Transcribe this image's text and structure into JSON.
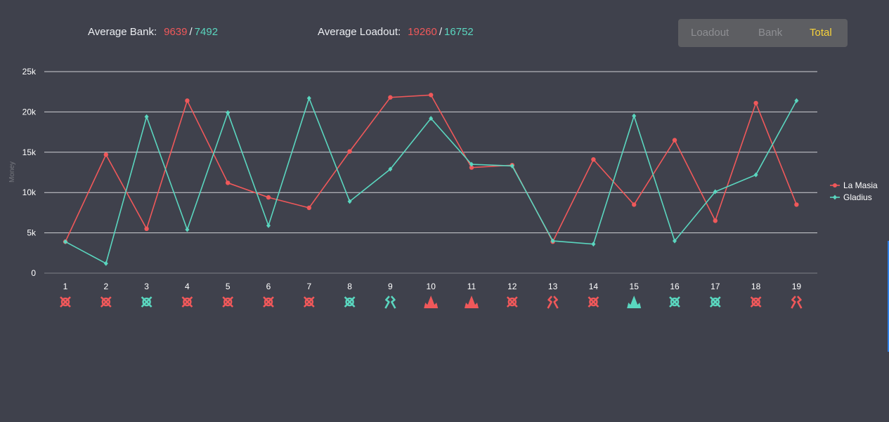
{
  "stats": {
    "bank": {
      "label": "Average Bank:",
      "red": "9639",
      "teal": "7492"
    },
    "loadout": {
      "label": "Average Loadout:",
      "red": "19260",
      "teal": "16752"
    }
  },
  "tabs": [
    {
      "label": "Loadout",
      "active": false
    },
    {
      "label": "Bank",
      "active": false
    },
    {
      "label": "Total",
      "active": true
    }
  ],
  "colors": {
    "team_red": "#f0585a",
    "team_teal": "#5ad6bf"
  },
  "chart_data": {
    "type": "line",
    "ylabel": "Money",
    "ylim": [
      0,
      25000
    ],
    "yticks": [
      {
        "value": 0,
        "label": "0"
      },
      {
        "value": 5000,
        "label": "5k"
      },
      {
        "value": 10000,
        "label": "10k"
      },
      {
        "value": 15000,
        "label": "15k"
      },
      {
        "value": 20000,
        "label": "20k"
      },
      {
        "value": 25000,
        "label": "25k"
      }
    ],
    "grid": true,
    "legend_position": "right",
    "categories": [
      "1",
      "2",
      "3",
      "4",
      "5",
      "6",
      "7",
      "8",
      "9",
      "10",
      "11",
      "12",
      "13",
      "14",
      "15",
      "16",
      "17",
      "18",
      "19"
    ],
    "series": [
      {
        "name": "La Masia",
        "color": "#f0585a",
        "values": [
          3900,
          14700,
          5500,
          21400,
          11200,
          9400,
          8100,
          15100,
          21800,
          22100,
          13100,
          13400,
          3900,
          14100,
          8500,
          16500,
          6500,
          21100,
          8500
        ]
      },
      {
        "name": "Gladius",
        "color": "#5ad6bf",
        "values": [
          3900,
          1200,
          19400,
          5400,
          19900,
          5900,
          21700,
          8900,
          12900,
          19200,
          13500,
          13300,
          4000,
          3600,
          19500,
          4000,
          10100,
          12200,
          21400
        ]
      }
    ],
    "round_outcomes": [
      {
        "round": "1",
        "winner": "La Masia",
        "icon": "elimination-icon"
      },
      {
        "round": "2",
        "winner": "La Masia",
        "icon": "elimination-icon"
      },
      {
        "round": "3",
        "winner": "Gladius",
        "icon": "elimination-icon"
      },
      {
        "round": "4",
        "winner": "La Masia",
        "icon": "elimination-icon"
      },
      {
        "round": "5",
        "winner": "La Masia",
        "icon": "elimination-icon"
      },
      {
        "round": "6",
        "winner": "La Masia",
        "icon": "elimination-icon"
      },
      {
        "round": "7",
        "winner": "La Masia",
        "icon": "elimination-icon"
      },
      {
        "round": "8",
        "winner": "Gladius",
        "icon": "elimination-icon"
      },
      {
        "round": "9",
        "winner": "Gladius",
        "icon": "defuse-icon"
      },
      {
        "round": "10",
        "winner": "La Masia",
        "icon": "detonation-icon"
      },
      {
        "round": "11",
        "winner": "La Masia",
        "icon": "detonation-icon"
      },
      {
        "round": "12",
        "winner": "La Masia",
        "icon": "elimination-icon"
      },
      {
        "round": "13",
        "winner": "La Masia",
        "icon": "defuse-icon"
      },
      {
        "round": "14",
        "winner": "La Masia",
        "icon": "elimination-icon"
      },
      {
        "round": "15",
        "winner": "Gladius",
        "icon": "detonation-icon"
      },
      {
        "round": "16",
        "winner": "Gladius",
        "icon": "elimination-icon"
      },
      {
        "round": "17",
        "winner": "Gladius",
        "icon": "elimination-icon"
      },
      {
        "round": "18",
        "winner": "La Masia",
        "icon": "elimination-icon"
      },
      {
        "round": "19",
        "winner": "La Masia",
        "icon": "defuse-icon"
      }
    ]
  }
}
